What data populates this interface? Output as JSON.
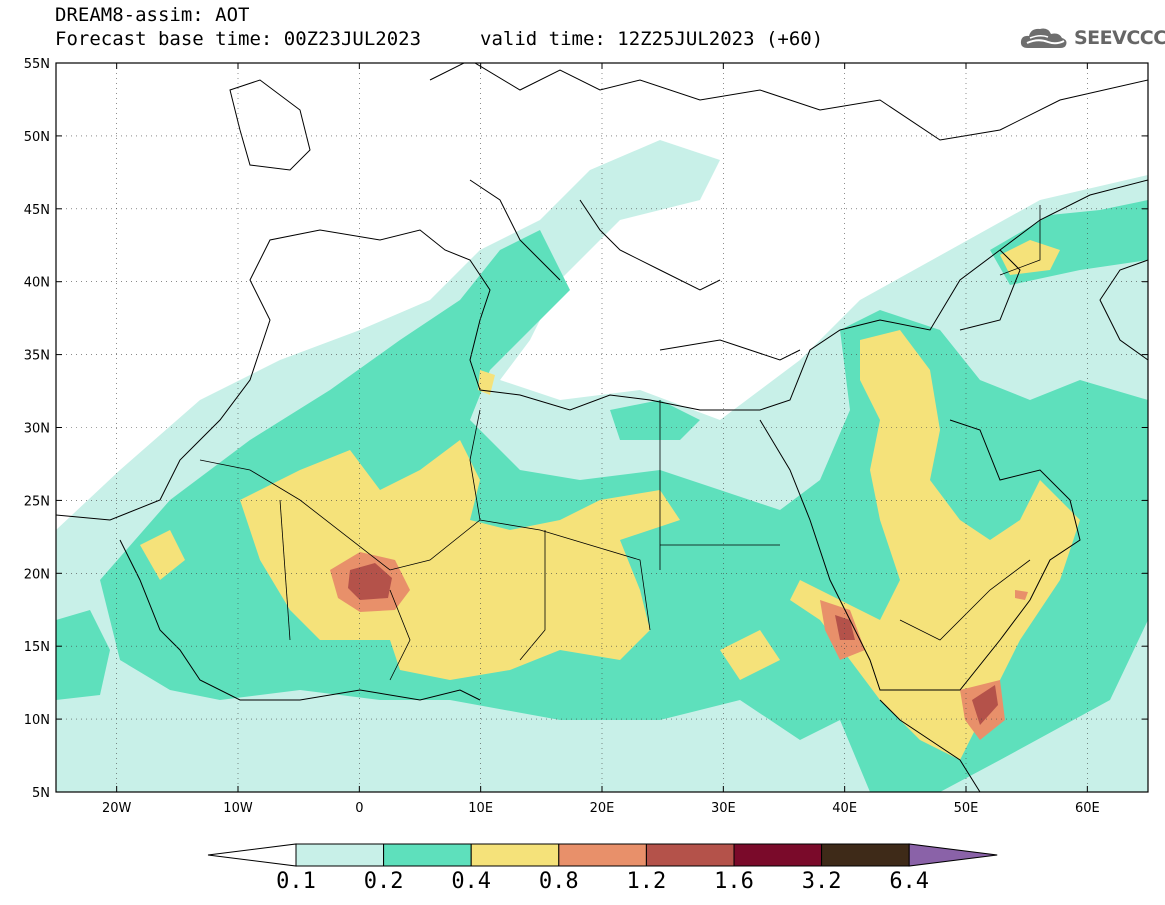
{
  "header": {
    "title": "DREAM8-assim: AOT",
    "base_time": "Forecast base time: 00Z23JUL2023",
    "valid_time": "valid time: 12Z25JUL2023 (+60)",
    "logo_text": "SEEVCCC",
    "logo_icon": "cloud-icon"
  },
  "map": {
    "lon_range": [
      -25,
      65
    ],
    "lat_range": [
      5,
      55
    ],
    "lat_labels": [
      "55N",
      "50N",
      "45N",
      "40N",
      "35N",
      "30N",
      "25N",
      "20N",
      "15N",
      "10N",
      "5N"
    ],
    "lon_labels": [
      "20W",
      "10W",
      "0",
      "10E",
      "20E",
      "30E",
      "40E",
      "50E",
      "60E"
    ],
    "gridlines": true,
    "variable": "AOT"
  },
  "colorbar": {
    "levels": [
      "0.1",
      "0.2",
      "0.4",
      "0.8",
      "1.2",
      "1.6",
      "3.2",
      "6.4"
    ],
    "colors": [
      "#c8f0e8",
      "#5ee0bc",
      "#f5e27a",
      "#e8906a",
      "#b4524a",
      "#7a0a2a",
      "#3e2a18",
      "#8a62a8"
    ],
    "under_color": "#ffffff"
  },
  "colors": {
    "c1": "#c8f0e8",
    "c2": "#5ee0bc",
    "c3": "#f5e27a",
    "c4": "#e8906a",
    "c5": "#b4524a",
    "coast": "#000000"
  }
}
